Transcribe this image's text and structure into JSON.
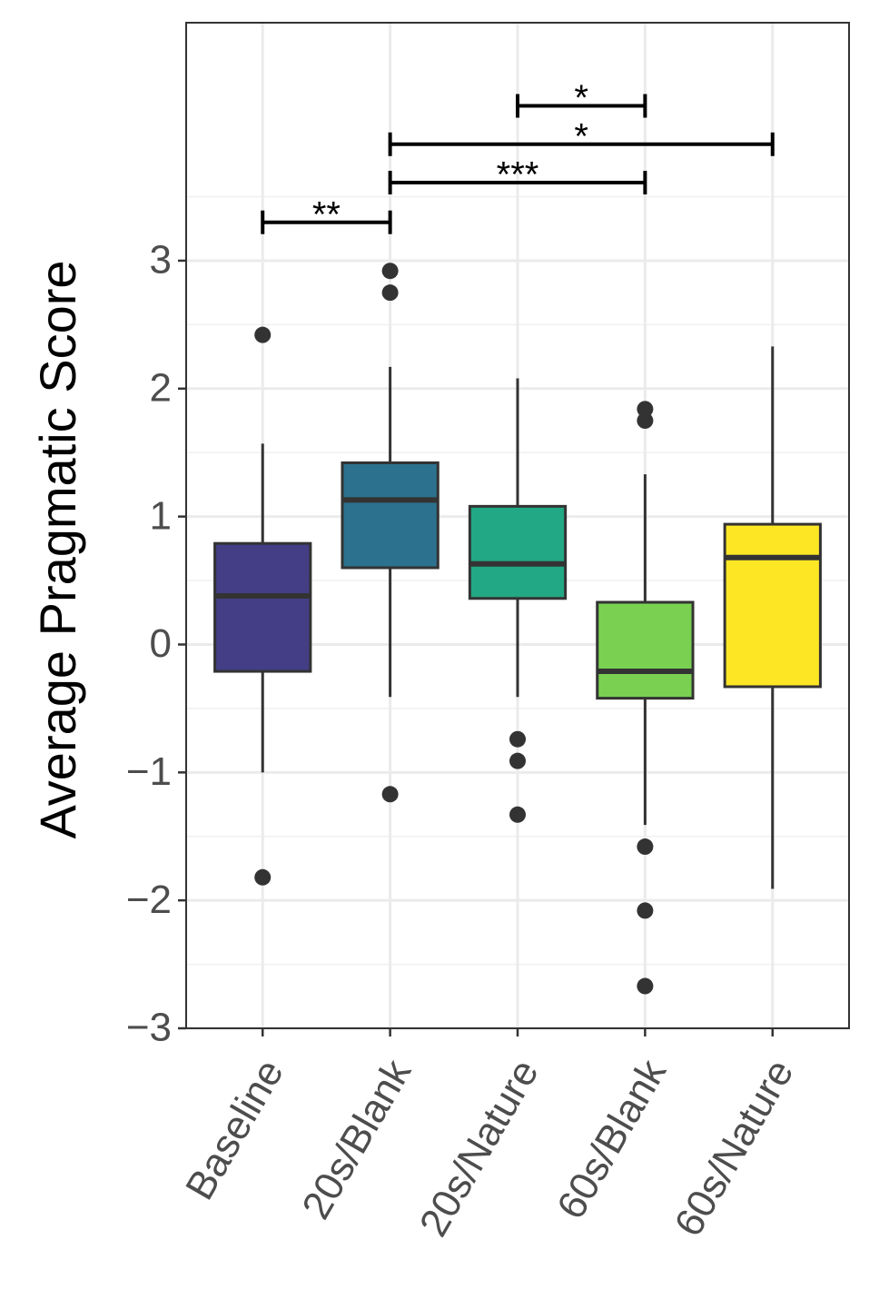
{
  "chart_data": {
    "type": "boxplot",
    "y_label": "Average Pragmatic Score",
    "categories": [
      "Baseline",
      "20s/Blank",
      "20s/Nature",
      "60s/Blank",
      "60s/Nature"
    ],
    "colors": [
      "#433e85",
      "#2c728e",
      "#22a884",
      "#7ad151",
      "#fde725"
    ],
    "boxes": [
      {
        "min": -1.0,
        "q1": -0.21,
        "median": 0.38,
        "q3": 0.79,
        "max": 1.57,
        "outliers": [
          2.42,
          -1.82
        ]
      },
      {
        "min": -0.41,
        "q1": 0.6,
        "median": 1.13,
        "q3": 1.42,
        "max": 2.17,
        "outliers": [
          2.92,
          2.75,
          -1.17
        ]
      },
      {
        "min": -0.41,
        "q1": 0.36,
        "median": 0.63,
        "q3": 1.08,
        "max": 2.08,
        "outliers": [
          -0.74,
          -0.91,
          -1.33
        ]
      },
      {
        "min": -1.41,
        "q1": -0.42,
        "median": -0.21,
        "q3": 0.33,
        "max": 1.33,
        "outliers": [
          1.84,
          1.75,
          -1.58,
          -2.08,
          -2.67
        ]
      },
      {
        "min": -1.91,
        "q1": -0.33,
        "median": 0.68,
        "q3": 0.94,
        "max": 2.33,
        "outliers": []
      }
    ],
    "significance": [
      {
        "from": 0,
        "to": 1,
        "y": 3.3,
        "label": "**"
      },
      {
        "from": 1,
        "to": 3,
        "y": 3.61,
        "label": "***"
      },
      {
        "from": 1,
        "to": 4,
        "y": 3.91,
        "label": "*"
      },
      {
        "from": 2,
        "to": 3,
        "y": 4.21,
        "label": "*"
      }
    ],
    "ylim": [
      -3,
      4.86
    ],
    "yticks": [
      {
        "value": -3,
        "label": "−3"
      },
      {
        "value": -2,
        "label": "−2"
      },
      {
        "value": -1,
        "label": "−1"
      },
      0,
      1,
      2,
      3
    ],
    "grid": true
  }
}
